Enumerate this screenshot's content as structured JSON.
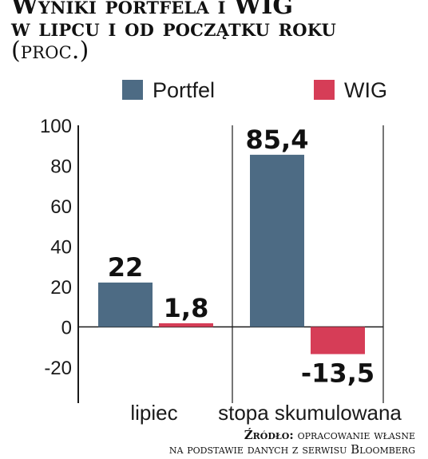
{
  "title_lines": [
    "Wyniki portfela i WIG",
    "w lipcu i od początku roku"
  ],
  "unit": "(proc.)",
  "source": {
    "label": "Źródło:",
    "line1": "opracowanie własne",
    "line2": "na podstawie danych z serwisu Bloomberg"
  },
  "chart_data": {
    "type": "bar",
    "categories": [
      "lipiec",
      "stopa skumulowana"
    ],
    "series": [
      {
        "name": "Portfel",
        "values": [
          22,
          85.4
        ],
        "labels": [
          "22",
          "85,4"
        ],
        "color": "#4d6b84"
      },
      {
        "name": "WIG",
        "values": [
          1.8,
          -13.5
        ],
        "labels": [
          "1,8",
          "-13,5"
        ],
        "color": "#d63d57"
      }
    ],
    "ylim": [
      -20,
      100
    ],
    "yticks": [
      "-20",
      "0",
      "20",
      "40",
      "60",
      "80",
      "100"
    ],
    "grid": false,
    "legend": "top"
  }
}
